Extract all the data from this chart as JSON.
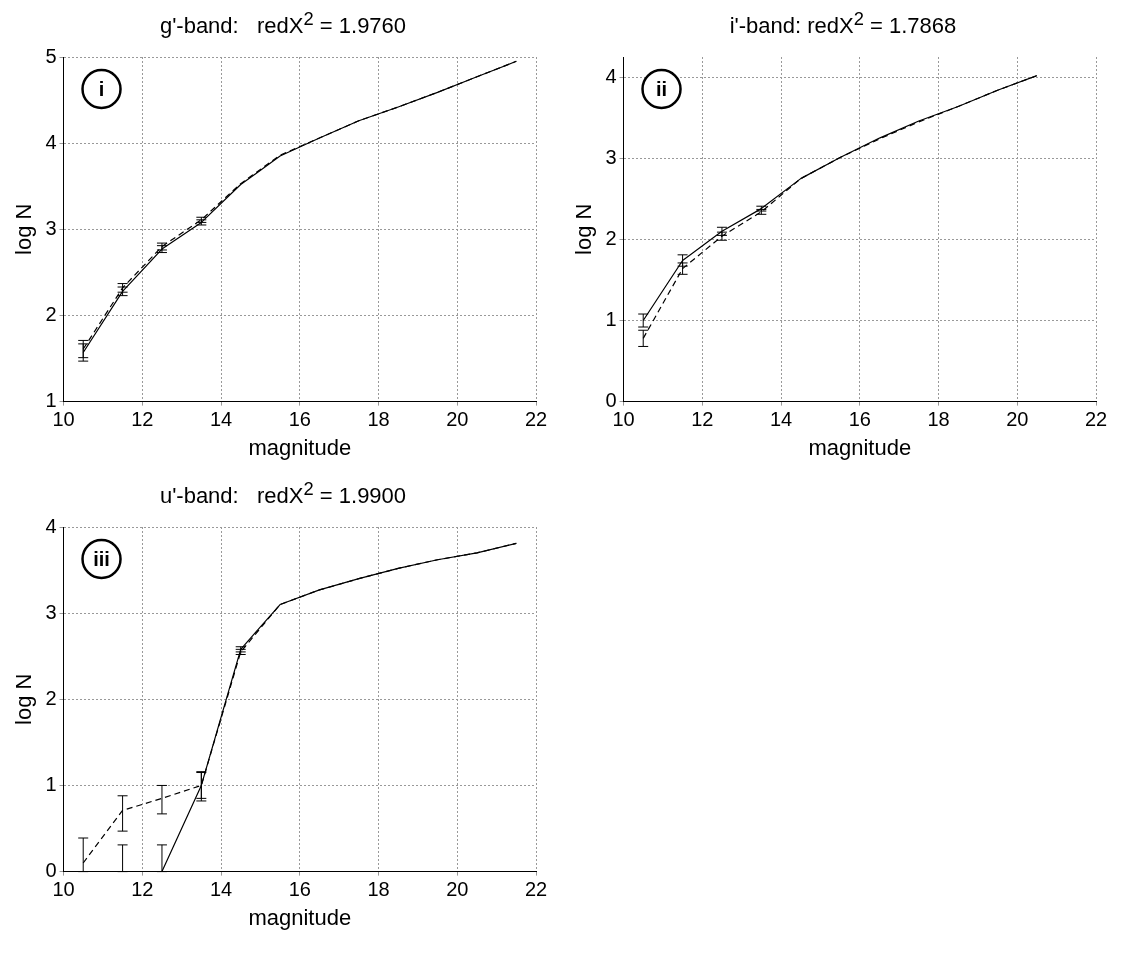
{
  "chart_data": [
    {
      "type": "line",
      "title": "g'-band:   redX$^{2}$ = 1.9760",
      "xlabel": "magnitude",
      "ylabel": "log N",
      "annotations": [
        "i"
      ],
      "x": [
        10.5,
        11.5,
        12.5,
        13.5,
        14.5,
        15.5,
        16.5,
        17.5,
        18.5,
        19.5,
        20.5,
        21.5
      ],
      "xlim": [
        10,
        22
      ],
      "xticks": [
        10,
        12,
        14,
        16,
        18,
        20,
        22
      ],
      "ylim": [
        1,
        5
      ],
      "yticks": [
        1,
        2,
        3,
        4,
        5
      ],
      "grid": true,
      "marker": "none",
      "series": [
        {
          "color": "#000000",
          "line_style": "solid",
          "values": [
            1.57,
            2.28,
            2.77,
            3.08,
            3.52,
            3.85,
            4.06,
            4.26,
            4.42,
            4.59,
            4.77,
            4.95
          ],
          "errors": [
            0.1,
            0.05,
            0.04,
            0.03,
            null,
            null,
            null,
            null,
            null,
            null,
            null,
            null
          ]
        },
        {
          "color": "#000000",
          "line_style": "dashed",
          "values": [
            1.61,
            2.32,
            2.8,
            3.11,
            3.53,
            3.86,
            4.06,
            4.26,
            4.42,
            4.59,
            4.77,
            4.95
          ],
          "errors": [
            0.1,
            0.05,
            0.04,
            0.03,
            null,
            null,
            null,
            null,
            null,
            null,
            null,
            null
          ]
        }
      ]
    },
    {
      "type": "line",
      "title": "i'-band: redX$^{2}$ = 1.7868",
      "xlabel": "magnitude",
      "ylabel": "log N",
      "annotations": [
        "ii"
      ],
      "x": [
        10.5,
        11.5,
        12.5,
        13.5,
        14.5,
        15.5,
        16.5,
        17.5,
        18.5,
        19.5,
        20.5
      ],
      "xlim": [
        10,
        22
      ],
      "xticks": [
        10,
        12,
        14,
        16,
        18,
        20,
        22
      ],
      "ylim": [
        0,
        4.25
      ],
      "yticks": [
        0,
        1,
        2,
        3,
        4
      ],
      "grid": true,
      "marker": "none",
      "series": [
        {
          "color": "#000000",
          "line_style": "solid",
          "values": [
            1.0,
            1.74,
            2.1,
            2.38,
            2.75,
            3.01,
            3.25,
            3.46,
            3.64,
            3.84,
            4.02
          ],
          "errors": [
            0.08,
            0.07,
            0.05,
            0.03,
            null,
            null,
            null,
            null,
            null,
            null,
            null
          ]
        },
        {
          "color": "#000000",
          "line_style": "dashed",
          "values": [
            0.78,
            1.64,
            2.04,
            2.34,
            2.75,
            3.01,
            3.24,
            3.45,
            3.64,
            3.84,
            4.02
          ],
          "errors": [
            0.1,
            0.07,
            0.05,
            0.03,
            null,
            null,
            null,
            null,
            null,
            null,
            null
          ]
        }
      ]
    },
    {
      "type": "line",
      "title": "u'-band:   redX$^{2}$ = 1.9900",
      "xlabel": "magnitude",
      "ylabel": "log N",
      "annotations": [
        "iii"
      ],
      "x": [
        10.5,
        11.5,
        12.5,
        13.5,
        14.5,
        15.5,
        16.5,
        17.5,
        18.5,
        19.5,
        20.5,
        21.5
      ],
      "xlim": [
        10,
        22
      ],
      "xticks": [
        10,
        12,
        14,
        16,
        18,
        20,
        22
      ],
      "ylim": [
        0,
        4
      ],
      "yticks": [
        0,
        1,
        2,
        3,
        4
      ],
      "grid": true,
      "marker": "none",
      "series": [
        {
          "color": "#000000",
          "line_style": "solid",
          "values": [
            null,
            0,
            0,
            1.0,
            2.58,
            3.1,
            3.27,
            3.4,
            3.52,
            3.62,
            3.7,
            3.81
          ],
          "errors": [
            null,
            [
              0,
              0.31
            ],
            [
              0,
              0.31
            ],
            0.15,
            0.03,
            null,
            null,
            null,
            null,
            null,
            null,
            null
          ]
        },
        {
          "color": "#000000",
          "line_style": "dashed",
          "values": [
            0.1,
            0.71,
            0.85,
            1.0,
            2.55,
            3.1,
            3.27,
            3.4,
            3.52,
            3.62,
            3.7,
            3.81
          ],
          "errors": [
            [
              0,
              0.39
            ],
            [
              0.47,
              0.88
            ],
            [
              0.67,
              1.0
            ],
            [
              0.82,
              1.16
            ],
            0.03,
            null,
            null,
            null,
            null,
            null,
            null,
            null
          ]
        }
      ]
    }
  ]
}
